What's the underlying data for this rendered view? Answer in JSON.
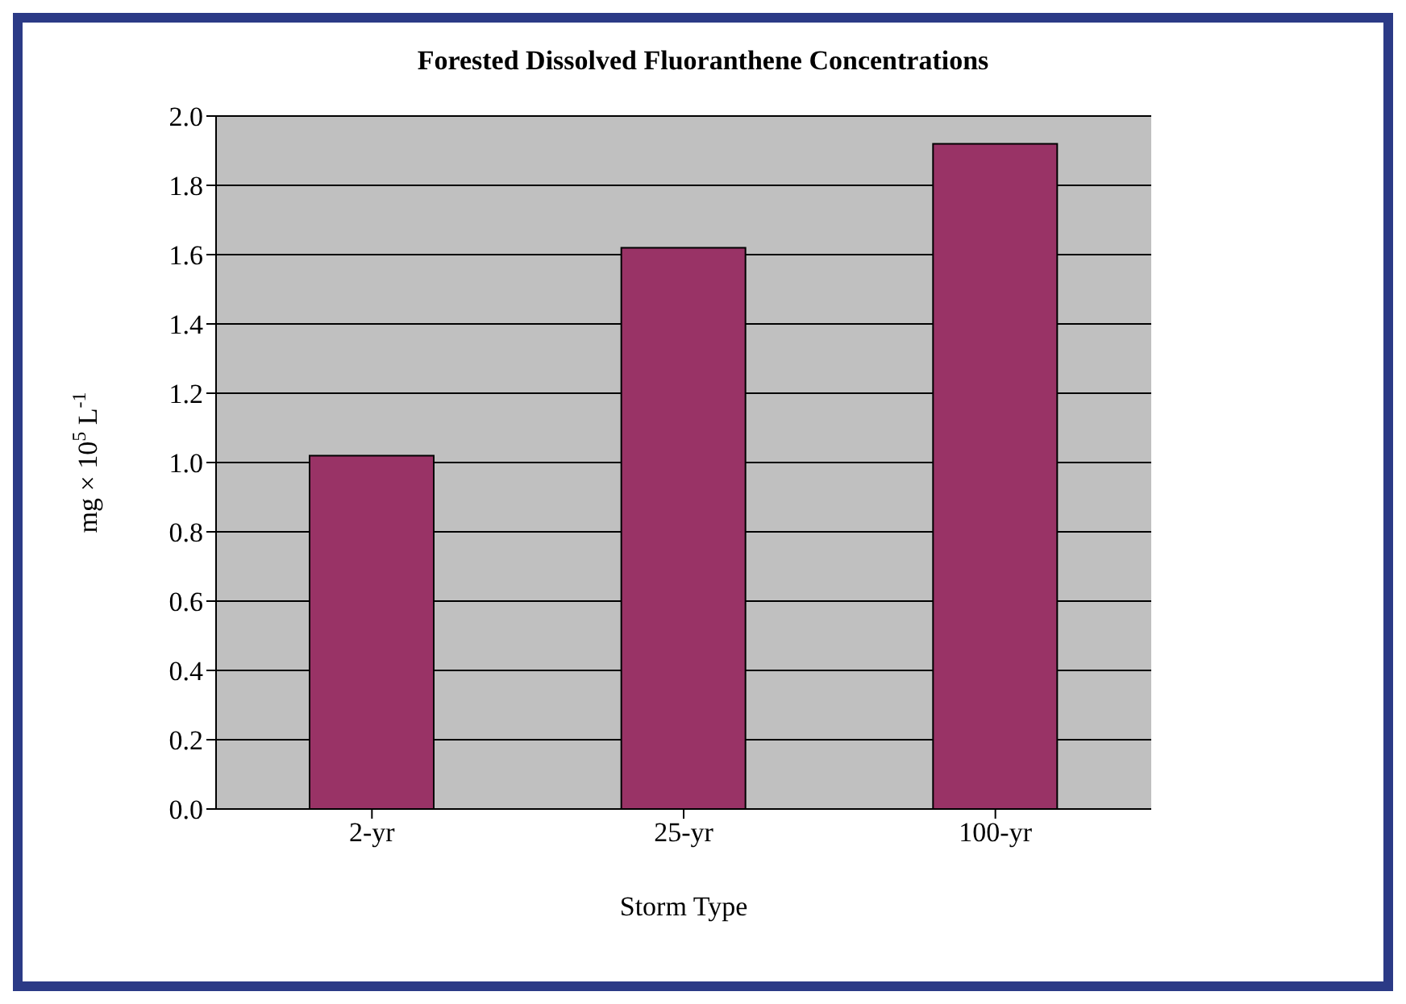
{
  "chart_data": {
    "type": "bar",
    "title": "Forested Dissolved Fluoranthene Concentrations",
    "xlabel": "Storm Type",
    "ylabel": "mg × 10$^{5}$ L$^{-1}$",
    "categories": [
      "2-yr",
      "25-yr",
      "100-yr"
    ],
    "values": [
      1.02,
      1.62,
      1.92
    ],
    "color": "#993366",
    "ylim": [
      0,
      2
    ],
    "yticks": [
      {
        "value": 0,
        "label": "0.0"
      },
      0.2,
      0.4,
      0.6,
      0.8,
      {
        "value": 1,
        "label": "1.0"
      },
      1.2,
      1.4,
      1.6,
      1.8,
      {
        "value": 2,
        "label": "2.0"
      }
    ],
    "grid": "y",
    "legend": false
  }
}
